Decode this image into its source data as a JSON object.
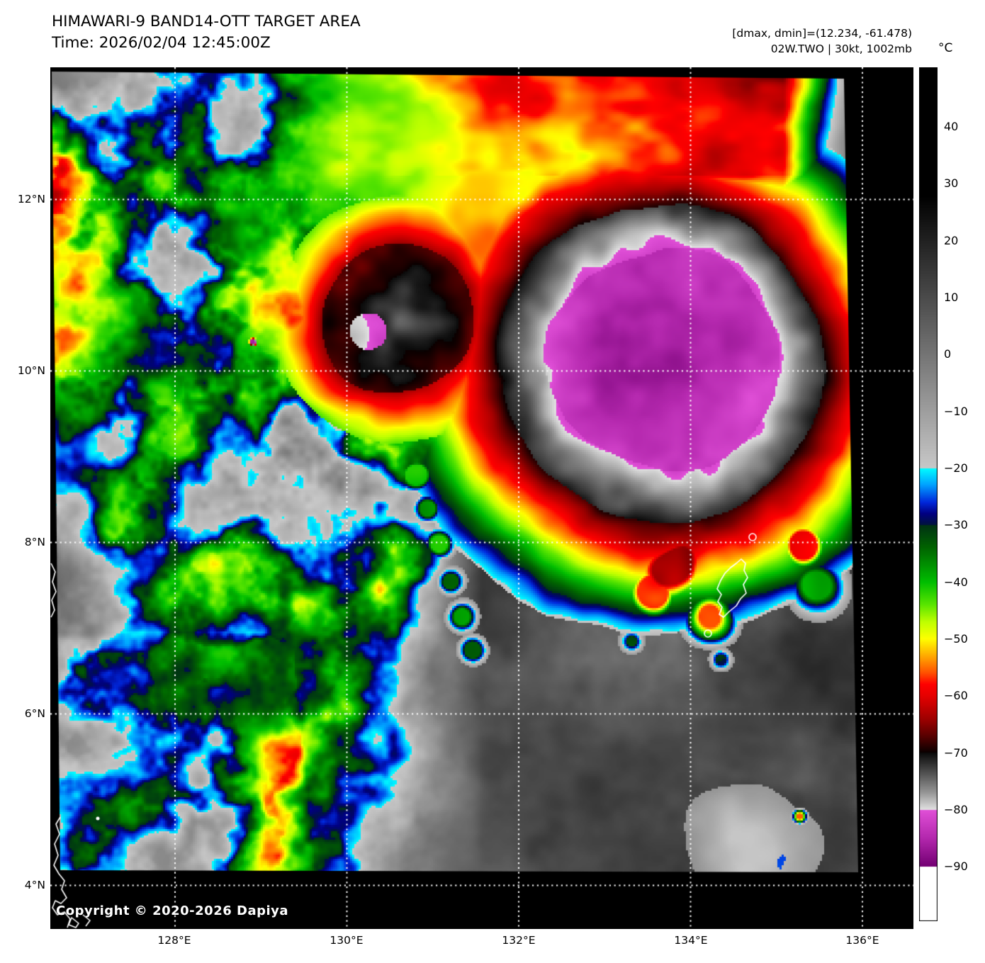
{
  "header": {
    "title": "HIMAWARI-9 BAND14-OTT TARGET AREA",
    "time_line": "Time: 2026/02/04 12:45:00Z",
    "dmax_dmin_line": "[dmax, dmin]=(12.234, -61.478)",
    "storm_line": "02W.TWO | 30kt, 1002mb"
  },
  "colorbar": {
    "unit_label": "°C",
    "ticks": [
      "40",
      "30",
      "20",
      "10",
      "0",
      "−10",
      "−20",
      "−30",
      "−40",
      "−50",
      "−60",
      "−70",
      "−80",
      "−90"
    ]
  },
  "axes": {
    "lat_ticks": [
      "12°N",
      "10°N",
      "8°N",
      "6°N",
      "4°N"
    ],
    "lon_ticks": [
      "128°E",
      "130°E",
      "132°E",
      "134°E",
      "136°E"
    ]
  },
  "map": {
    "copyright": "Copyright © 2020-2026 Dapiya"
  },
  "palette": {
    "stops": [
      [
        50,
        "#000000"
      ],
      [
        28,
        "#000000"
      ],
      [
        -20,
        "#c8c8c8"
      ],
      [
        -20.01,
        "#00ffff"
      ],
      [
        -23,
        "#00a0ff"
      ],
      [
        -26,
        "#0028dc"
      ],
      [
        -28,
        "#000082"
      ],
      [
        -30,
        "#00143c"
      ],
      [
        -30.01,
        "#003214"
      ],
      [
        -34,
        "#006400"
      ],
      [
        -40,
        "#00be00"
      ],
      [
        -44,
        "#5ae600"
      ],
      [
        -47,
        "#beff00"
      ],
      [
        -50,
        "#ffff00"
      ],
      [
        -53,
        "#ffaa00"
      ],
      [
        -56,
        "#ff5000"
      ],
      [
        -58,
        "#ff0000"
      ],
      [
        -60,
        "#e60000"
      ],
      [
        -64,
        "#a00000"
      ],
      [
        -67,
        "#5a0000"
      ],
      [
        -70,
        "#0a0000"
      ],
      [
        -70.01,
        "#0a0a0a"
      ],
      [
        -74,
        "#5a5a5a"
      ],
      [
        -77,
        "#969696"
      ],
      [
        -80,
        "#e1e1e1"
      ],
      [
        -80.01,
        "#e150d8"
      ],
      [
        -85,
        "#b428ae"
      ],
      [
        -90,
        "#730073"
      ],
      [
        -90.01,
        "#ffffff"
      ],
      [
        -100,
        "#ffffff"
      ]
    ],
    "grid_color": "#ffffff",
    "coastline_color": "#ffffff",
    "nodata_color": "#000000"
  }
}
